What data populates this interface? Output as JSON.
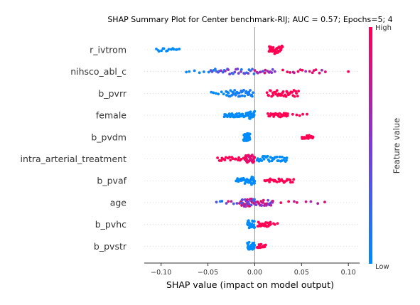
{
  "chart_data": {
    "type": "scatter",
    "subtype": "shap-beeswarm",
    "title": "SHAP Summary Plot for Center benchmark-RIJ; AUC = 0.57; Epochs=5; 4",
    "xlabel": "SHAP value (impact on model output)",
    "x_ticks": [
      -0.1,
      -0.05,
      0.0,
      0.05,
      0.1
    ],
    "x_tick_labels": [
      "−0.10",
      "−0.05",
      "0.00",
      "0.05",
      "0.10"
    ],
    "xlim": [
      -0.118,
      0.112
    ],
    "zero_line": 0,
    "colorbar": {
      "label": "Feature value",
      "high_label": "High",
      "low_label": "Low",
      "low_color": "#008bfb",
      "mid_color": "#7c3bd6",
      "high_color": "#ff0052"
    },
    "features": [
      "r_ivtrom",
      "nihsco_abl_c",
      "b_pvrr",
      "female",
      "b_pvdm",
      "intra_arterial_treatment",
      "b_pvaf",
      "age",
      "b_pvhc",
      "b_pvstr"
    ],
    "clusters": [
      {
        "feature": "r_ivtrom",
        "points": [
          {
            "min": -0.106,
            "max": -0.08,
            "n": 15,
            "c0": 0.0,
            "c1": 0.0,
            "spread": 0.5
          },
          {
            "min": 0.015,
            "max": 0.03,
            "n": 40,
            "c0": 1.0,
            "c1": 1.0,
            "spread": 1.0
          }
        ]
      },
      {
        "feature": "nihsco_abl_c",
        "points": [
          {
            "min": -0.076,
            "max": -0.045,
            "n": 6,
            "c0": 0.0,
            "c1": 0.05,
            "spread": 0.3
          },
          {
            "min": -0.048,
            "max": 0.0,
            "n": 30,
            "c0": 0.0,
            "c1": 0.65,
            "spread": 0.7
          },
          {
            "min": 0.0,
            "max": 0.022,
            "n": 14,
            "c0": 0.3,
            "c1": 1.0,
            "spread": 0.6
          },
          {
            "min": 0.03,
            "max": 0.077,
            "n": 16,
            "c0": 0.6,
            "c1": 1.0,
            "spread": 0.5
          },
          {
            "min": 0.1,
            "max": 0.1,
            "n": 1,
            "c0": 1.0,
            "c1": 1.0,
            "spread": 0.0
          }
        ]
      },
      {
        "feature": "b_pvrr",
        "points": [
          {
            "min": -0.047,
            "max": -0.031,
            "n": 6,
            "c0": 0.0,
            "c1": 0.0,
            "spread": 0.4
          },
          {
            "min": -0.031,
            "max": -0.001,
            "n": 36,
            "c0": 0.0,
            "c1": 0.15,
            "spread": 0.85
          },
          {
            "min": 0.013,
            "max": 0.047,
            "n": 36,
            "c0": 1.0,
            "c1": 1.0,
            "spread": 0.8
          }
        ]
      },
      {
        "feature": "female",
        "points": [
          {
            "min": -0.033,
            "max": -0.009,
            "n": 34,
            "c0": 0.0,
            "c1": 0.0,
            "spread": 0.5
          },
          {
            "min": -0.009,
            "max": 0.0,
            "n": 28,
            "c0": 0.0,
            "c1": 0.0,
            "spread": 1.0
          },
          {
            "min": 0.014,
            "max": 0.036,
            "n": 30,
            "c0": 1.0,
            "c1": 1.0,
            "spread": 0.5
          },
          {
            "min": 0.04,
            "max": 0.058,
            "n": 5,
            "c0": 1.0,
            "c1": 1.0,
            "spread": 0.3
          }
        ]
      },
      {
        "feature": "b_pvdm",
        "points": [
          {
            "min": -0.012,
            "max": -0.005,
            "n": 42,
            "c0": 0.0,
            "c1": 0.0,
            "spread": 1.0
          },
          {
            "min": 0.05,
            "max": 0.063,
            "n": 18,
            "c0": 1.0,
            "c1": 1.0,
            "spread": 0.45
          }
        ]
      },
      {
        "feature": "intra_arterial_treatment",
        "points": [
          {
            "min": -0.04,
            "max": -0.01,
            "n": 20,
            "c0": 1.0,
            "c1": 1.0,
            "spread": 0.5
          },
          {
            "min": -0.01,
            "max": 0.0,
            "n": 28,
            "c0": 0.8,
            "c1": 1.0,
            "spread": 1.0
          },
          {
            "min": 0.002,
            "max": 0.035,
            "n": 34,
            "c0": 0.0,
            "c1": 0.0,
            "spread": 0.7
          }
        ]
      },
      {
        "feature": "b_pvaf",
        "points": [
          {
            "min": -0.02,
            "max": -0.005,
            "n": 24,
            "c0": 0.0,
            "c1": 0.0,
            "spread": 0.7
          },
          {
            "min": -0.005,
            "max": 0.0,
            "n": 22,
            "c0": 0.0,
            "c1": 0.0,
            "spread": 1.0
          },
          {
            "min": 0.01,
            "max": 0.042,
            "n": 26,
            "c0": 1.0,
            "c1": 1.0,
            "spread": 0.5
          }
        ]
      },
      {
        "feature": "age",
        "points": [
          {
            "min": -0.042,
            "max": -0.01,
            "n": 10,
            "c0": 0.0,
            "c1": 1.0,
            "spread": 0.4
          },
          {
            "min": -0.015,
            "max": 0.0,
            "n": 34,
            "c0": 0.2,
            "c1": 1.0,
            "spread": 1.0
          },
          {
            "min": 0.0,
            "max": 0.02,
            "n": 26,
            "c0": 0.4,
            "c1": 1.0,
            "spread": 0.8
          },
          {
            "min": 0.025,
            "max": 0.078,
            "n": 8,
            "c0": 0.6,
            "c1": 1.0,
            "spread": 0.3
          }
        ]
      },
      {
        "feature": "b_pvhc",
        "points": [
          {
            "min": -0.008,
            "max": 0.0,
            "n": 30,
            "c0": 0.0,
            "c1": 0.0,
            "spread": 1.0
          },
          {
            "min": 0.003,
            "max": 0.017,
            "n": 24,
            "c0": 1.0,
            "c1": 1.0,
            "spread": 0.6
          },
          {
            "min": 0.017,
            "max": 0.025,
            "n": 4,
            "c0": 1.0,
            "c1": 1.0,
            "spread": 0.3
          }
        ]
      },
      {
        "feature": "b_pvstr",
        "points": [
          {
            "min": -0.008,
            "max": 0.0,
            "n": 30,
            "c0": 0.0,
            "c1": 0.0,
            "spread": 1.0
          },
          {
            "min": 0.002,
            "max": 0.012,
            "n": 14,
            "c0": 1.0,
            "c1": 1.0,
            "spread": 0.5
          }
        ]
      }
    ]
  }
}
